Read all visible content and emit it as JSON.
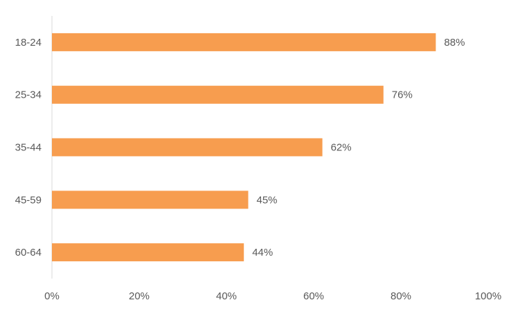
{
  "chart_data": {
    "type": "bar",
    "orientation": "horizontal",
    "categories": [
      "18-24",
      "25-34",
      "35-44",
      "45-59",
      "60-64"
    ],
    "values": [
      88,
      76,
      62,
      45,
      44
    ],
    "value_labels": [
      "88%",
      "76%",
      "62%",
      "45%",
      "44%"
    ],
    "xlim": [
      0,
      100
    ],
    "xticks": [
      0,
      20,
      40,
      60,
      80,
      100
    ],
    "xtick_labels": [
      "0%",
      "20%",
      "40%",
      "60%",
      "80%",
      "100%"
    ],
    "title": "",
    "xlabel": "",
    "ylabel": "",
    "grid": false,
    "legend": "none",
    "colors": {
      "bar": "#F79D4F",
      "axis_line": "#D9D9D9",
      "text": "#595959"
    }
  }
}
